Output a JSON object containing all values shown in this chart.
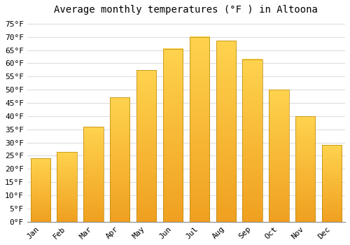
{
  "title": "Average monthly temperatures (°F ) in Altoona",
  "months": [
    "Jan",
    "Feb",
    "Mar",
    "Apr",
    "May",
    "Jun",
    "Jul",
    "Aug",
    "Sep",
    "Oct",
    "Nov",
    "Dec"
  ],
  "values": [
    24,
    26.5,
    36,
    47,
    57.5,
    65.5,
    70,
    68.5,
    61.5,
    50,
    40,
    29
  ],
  "bar_color_top": "#FFD34E",
  "bar_color_bottom": "#F0A020",
  "bar_edge_color": "#B8860B",
  "background_color": "#FFFFFF",
  "grid_color": "#DDDDDD",
  "ylim": [
    0,
    77
  ],
  "yticks": [
    0,
    5,
    10,
    15,
    20,
    25,
    30,
    35,
    40,
    45,
    50,
    55,
    60,
    65,
    70,
    75
  ],
  "title_fontsize": 10,
  "tick_fontsize": 8,
  "bar_width": 0.75
}
